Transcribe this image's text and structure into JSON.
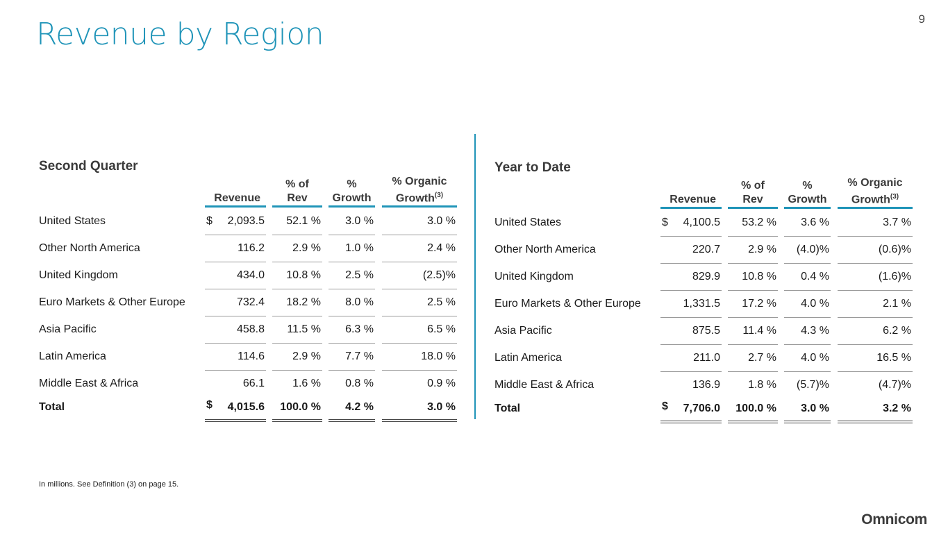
{
  "page": {
    "title": "Revenue by Region",
    "number": "9",
    "footnote": "In millions.  See Definition (3) on page 15.",
    "logo": "Omnicom",
    "accent_color": "#1f94b8"
  },
  "headers": {
    "revenue": "Revenue",
    "pct_rev_line1": "% of",
    "pct_rev_line2": "Rev",
    "growth_line1": "%",
    "growth_line2": "Growth",
    "organic_line1": "% Organic",
    "organic_line2": "Growth",
    "organic_sup": "(3)"
  },
  "second_quarter": {
    "title": "Second Quarter",
    "rows": [
      {
        "label": "United States",
        "dollar": "$",
        "revenue": "2,093.5",
        "pct_rev": "52.1 %",
        "growth": "3.0 %",
        "organic": "3.0 %"
      },
      {
        "label": "Other North America",
        "dollar": "",
        "revenue": "116.2",
        "pct_rev": "2.9 %",
        "growth": "1.0 %",
        "organic": "2.4 %"
      },
      {
        "label": "United Kingdom",
        "dollar": "",
        "revenue": "434.0",
        "pct_rev": "10.8 %",
        "growth": "2.5 %",
        "organic": "(2.5)%"
      },
      {
        "label": "Euro Markets & Other Europe",
        "dollar": "",
        "revenue": "732.4",
        "pct_rev": "18.2 %",
        "growth": "8.0 %",
        "organic": "2.5 %"
      },
      {
        "label": "Asia Pacific",
        "dollar": "",
        "revenue": "458.8",
        "pct_rev": "11.5 %",
        "growth": "6.3 %",
        "organic": "6.5 %"
      },
      {
        "label": "Latin America",
        "dollar": "",
        "revenue": "114.6",
        "pct_rev": "2.9 %",
        "growth": "7.7 %",
        "organic": "18.0 %"
      },
      {
        "label": "Middle East & Africa",
        "dollar": "",
        "revenue": "66.1",
        "pct_rev": "1.6 %",
        "growth": "0.8 %",
        "organic": "0.9 %"
      }
    ],
    "total": {
      "label": "Total",
      "dollar": "$",
      "revenue": "4,015.6",
      "pct_rev": "100.0 %",
      "growth": "4.2 %",
      "organic": "3.0 %"
    }
  },
  "year_to_date": {
    "title": "Year to Date",
    "rows": [
      {
        "label": "United States",
        "dollar": "$",
        "revenue": "4,100.5",
        "pct_rev": "53.2 %",
        "growth": "3.6 %",
        "organic": "3.7 %"
      },
      {
        "label": "Other North America",
        "dollar": "",
        "revenue": "220.7",
        "pct_rev": "2.9 %",
        "growth": "(4.0)%",
        "organic": "(0.6)%"
      },
      {
        "label": "United Kingdom",
        "dollar": "",
        "revenue": "829.9",
        "pct_rev": "10.8 %",
        "growth": "0.4 %",
        "organic": "(1.6)%"
      },
      {
        "label": "Euro Markets & Other Europe",
        "dollar": "",
        "revenue": "1,331.5",
        "pct_rev": "17.2 %",
        "growth": "4.0 %",
        "organic": "2.1 %"
      },
      {
        "label": "Asia Pacific",
        "dollar": "",
        "revenue": "875.5",
        "pct_rev": "11.4 %",
        "growth": "4.3 %",
        "organic": "6.2 %"
      },
      {
        "label": "Latin America",
        "dollar": "",
        "revenue": "211.0",
        "pct_rev": "2.7 %",
        "growth": "4.0 %",
        "organic": "16.5 %"
      },
      {
        "label": "Middle East & Africa",
        "dollar": "",
        "revenue": "136.9",
        "pct_rev": "1.8 %",
        "growth": "(5.7)%",
        "organic": "(4.7)%"
      }
    ],
    "total": {
      "label": "Total",
      "dollar": "$",
      "revenue": "7,706.0",
      "pct_rev": "100.0 %",
      "growth": "3.0 %",
      "organic": "3.2 %"
    }
  }
}
